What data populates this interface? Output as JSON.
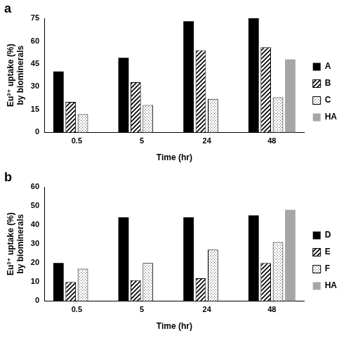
{
  "chart_data": [
    {
      "type": "bar",
      "panel_label": "a",
      "x_label": "Time (hr)",
      "y_label": "Eu³⁺ uptake (%) by biominerals",
      "categories": [
        "0.5",
        "5",
        "24",
        "48"
      ],
      "series": [
        {
          "name": "A",
          "color": "#000000",
          "marker": "solid",
          "values": [
            40,
            49,
            73,
            75
          ]
        },
        {
          "name": "B",
          "color": "#000000",
          "marker": "hatch",
          "values": [
            20,
            33,
            54,
            56
          ]
        },
        {
          "name": "C",
          "color": "#555555",
          "marker": "dots",
          "values": [
            12,
            18,
            22,
            23
          ]
        },
        {
          "name": "HA",
          "color": "#a6a6a6",
          "marker": "solid",
          "values": [
            null,
            null,
            null,
            48
          ]
        }
      ],
      "ylim": [
        0,
        75
      ],
      "yticks": [
        0,
        15,
        30,
        45,
        60,
        75
      ],
      "grid": false,
      "legend": "right"
    },
    {
      "type": "bar",
      "panel_label": "b",
      "x_label": "Time (hr)",
      "y_label": "Eu³⁺ uptake (%) by biominerals",
      "categories": [
        "0.5",
        "5",
        "24",
        "48"
      ],
      "series": [
        {
          "name": "D",
          "color": "#000000",
          "marker": "solid",
          "values": [
            20,
            44,
            44,
            45
          ]
        },
        {
          "name": "E",
          "color": "#000000",
          "marker": "hatch",
          "values": [
            10,
            11,
            12,
            20
          ]
        },
        {
          "name": "F",
          "color": "#555555",
          "marker": "dots",
          "values": [
            17,
            20,
            27,
            31
          ]
        },
        {
          "name": "HA",
          "color": "#a6a6a6",
          "marker": "solid",
          "values": [
            null,
            null,
            null,
            48
          ]
        }
      ],
      "ylim": [
        0,
        60
      ],
      "yticks": [
        0,
        10,
        20,
        30,
        40,
        50,
        60
      ],
      "grid": false,
      "legend": "right"
    }
  ]
}
